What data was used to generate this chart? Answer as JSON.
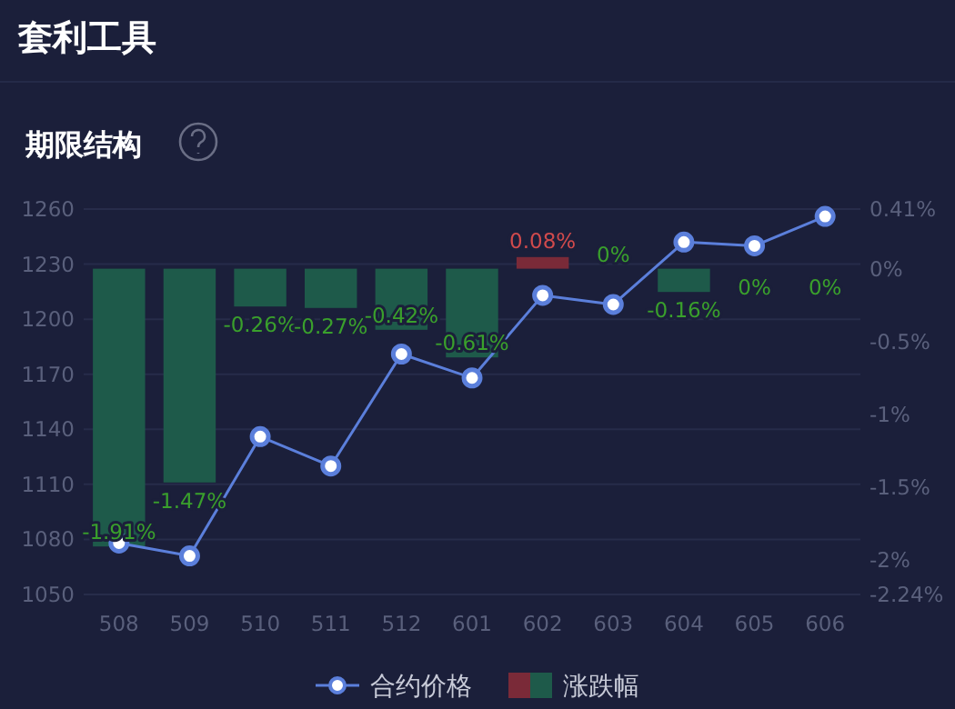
{
  "chart_data": {
    "type": "bar",
    "title": "套利工具",
    "subtitle": "期限结构",
    "categories": [
      "508",
      "509",
      "510",
      "511",
      "512",
      "601",
      "602",
      "603",
      "604",
      "605",
      "606"
    ],
    "series": [
      {
        "name": "合约价格",
        "type": "line",
        "color": "#5b7fdb",
        "marker": "circle",
        "values": [
          1078,
          1071,
          1136,
          1120,
          1181,
          1168,
          1213,
          1208,
          1242,
          1240,
          1256
        ]
      },
      {
        "name": "涨跌幅",
        "axis": "y2",
        "colors": [
          "#1e5a4a",
          "#1e5a4a",
          "#1e5a4a",
          "#1e5a4a",
          "#1e5a4a",
          "#1e5a4a",
          "#7a2a38",
          "#1e5a4a",
          "#1e5a4a",
          "#1e5a4a",
          "#1e5a4a"
        ],
        "values": [
          -1.91,
          -1.47,
          -0.26,
          -0.27,
          -0.42,
          -0.61,
          0.08,
          0,
          -0.16,
          0,
          0
        ],
        "value_labels": [
          "-1.91%",
          "-1.47%",
          "-0.26%",
          "-0.27%",
          "-0.42%",
          "-0.61%",
          "0.08%",
          "0%",
          "-0.16%",
          "0%",
          "0%"
        ]
      }
    ],
    "ylim": [
      1050,
      1260
    ],
    "yticks": [
      1050,
      1080,
      1110,
      1140,
      1170,
      1200,
      1230,
      1260
    ],
    "y2lim": [
      -2.24,
      0.41
    ],
    "y2ticks": [
      {
        "value": -2.24,
        "label": "-2.24%"
      },
      {
        "value": -2,
        "label": "-2%"
      },
      {
        "value": -1.5,
        "label": "-1.5%"
      },
      {
        "value": -1,
        "label": "-1%"
      },
      {
        "value": -0.5,
        "label": "-0.5%"
      },
      {
        "value": 0,
        "label": "0%"
      },
      {
        "value": 0.41,
        "label": "0.41%"
      }
    ],
    "grid": "y",
    "legend": "bottom"
  }
}
